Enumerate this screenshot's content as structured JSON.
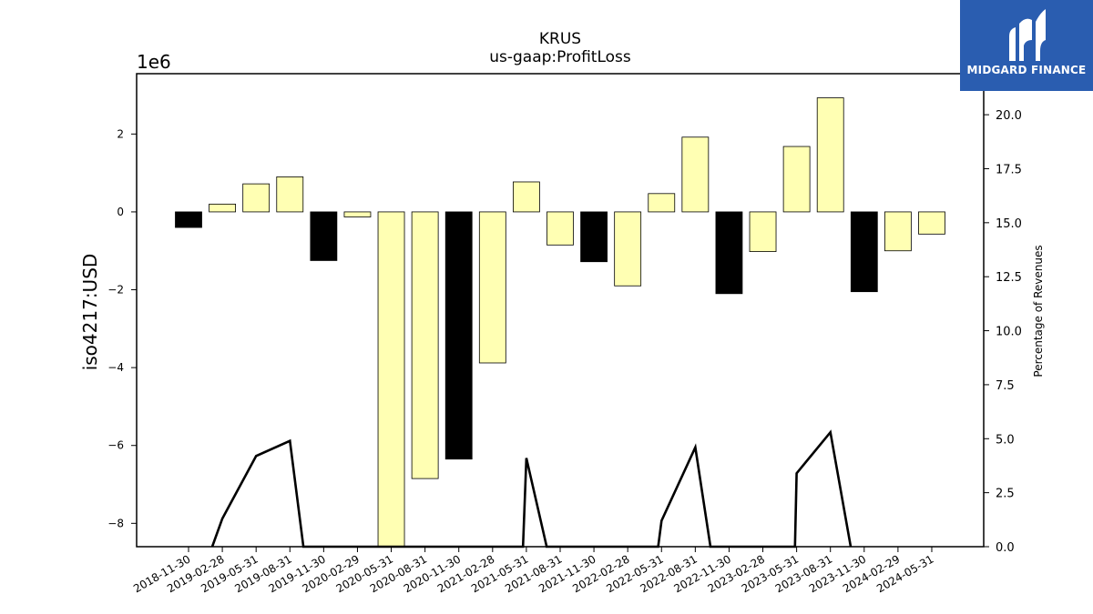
{
  "logo": {
    "text": "MIDGARD FINANCE",
    "background": "#2a5db0"
  },
  "chart_data": {
    "type": "bar",
    "title": "KRUS",
    "subtitle": "us-gaap:ProfitLoss",
    "ylabel": "iso4217:USD",
    "y_offset_label": "1e6",
    "y2label": "Percentage of Revenues",
    "ylim": [
      -8.6,
      3.55
    ],
    "y2lim": [
      0,
      21.9
    ],
    "yticks": [
      -8,
      -6,
      -4,
      -2,
      0,
      2
    ],
    "ytick_labels": [
      "−8",
      "−6",
      "−4",
      "−2",
      "0",
      "2"
    ],
    "y2ticks": [
      0,
      2.5,
      5,
      7.5,
      10,
      12.5,
      15,
      17.5,
      20
    ],
    "y2tick_labels": [
      "0.0",
      "2.5",
      "5.0",
      "7.5",
      "10.0",
      "12.5",
      "15.0",
      "17.5",
      "20.0"
    ],
    "categories": [
      "2018-11-30",
      "2019-02-28",
      "2019-05-31",
      "2019-08-31",
      "2019-11-30",
      "2020-02-29",
      "2020-05-31",
      "2020-08-31",
      "2020-11-30",
      "2021-02-28",
      "2021-05-31",
      "2021-08-31",
      "2021-11-30",
      "2022-02-28",
      "2022-05-31",
      "2022-08-31",
      "2022-11-30",
      "2023-02-28",
      "2023-05-31",
      "2023-08-31",
      "2023-11-30",
      "2024-02-29",
      "2024-05-31"
    ],
    "values": [
      -0.4,
      0.2,
      0.72,
      0.9,
      -1.25,
      -0.13,
      -8.6,
      -6.85,
      -6.35,
      -3.88,
      0.77,
      -0.85,
      -1.28,
      -1.9,
      0.47,
      1.92,
      -2.1,
      -1.02,
      1.68,
      2.93,
      -2.05,
      -1.0,
      -0.57
    ],
    "bar_colors": [
      "#000000",
      "#ffffb3",
      "#ffffb3",
      "#ffffb3",
      "#000000",
      "#ffffb3",
      "#ffffb3",
      "#ffffb3",
      "#000000",
      "#ffffb3",
      "#ffffb3",
      "#ffffb3",
      "#000000",
      "#ffffb3",
      "#ffffb3",
      "#ffffb3",
      "#000000",
      "#ffffb3",
      "#ffffb3",
      "#ffffb3",
      "#000000",
      "#ffffb3",
      "#ffffb3"
    ],
    "line": {
      "axis": "secondary",
      "points": [
        [
          0.7,
          0
        ],
        [
          1.0,
          1.3
        ],
        [
          2.0,
          4.2
        ],
        [
          3.0,
          4.9
        ],
        [
          3.4,
          0
        ],
        [
          9.9,
          0
        ],
        [
          10.0,
          4.1
        ],
        [
          10.6,
          0
        ],
        [
          13.9,
          0
        ],
        [
          14.0,
          1.2
        ],
        [
          15.0,
          4.6
        ],
        [
          15.45,
          0
        ],
        [
          17.95,
          0
        ],
        [
          18.0,
          3.4
        ],
        [
          19.0,
          5.3
        ],
        [
          19.6,
          0
        ]
      ]
    },
    "grid": false,
    "legend": "none"
  }
}
